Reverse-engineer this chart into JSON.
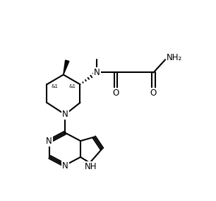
{
  "background_color": "#ffffff",
  "line_color": "#000000",
  "line_width": 1.5,
  "font_size": 8.5,
  "fig_width": 3.06,
  "fig_height": 2.84,
  "dpi": 100,
  "xlim": [
    0,
    10
  ],
  "ylim": [
    0,
    9.3
  ]
}
